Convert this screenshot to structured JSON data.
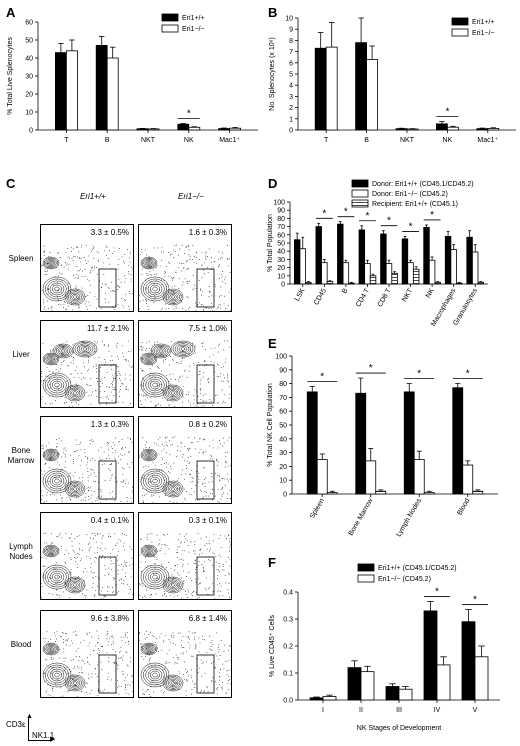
{
  "panels": {
    "A": {
      "letter": "A",
      "legend": [
        "Eri1+/+",
        "Eri1−/−"
      ],
      "chart_data": {
        "type": "bar",
        "ylabel": "% Total Live Splenocytes",
        "ylim": [
          0,
          60
        ],
        "yticks": [
          "0",
          "10",
          "20",
          "30",
          "40",
          "50",
          "60"
        ],
        "categories": [
          "T",
          "B",
          "NKT",
          "NK",
          "Mac1⁺"
        ],
        "series": [
          {
            "name": "Eri1+/+",
            "values": [
              43,
              47,
              0.7,
              3.2,
              0.8
            ],
            "errors": [
              5,
              5,
              0.2,
              0.4,
              0.3
            ]
          },
          {
            "name": "Eri1−/−",
            "values": [
              44,
              40,
              0.6,
              1.5,
              1.0
            ],
            "errors": [
              6,
              6,
              0.2,
              0.3,
              0.4
            ]
          }
        ],
        "significance": [
          {
            "category": "NK",
            "label": "*"
          }
        ]
      }
    },
    "B": {
      "letter": "B",
      "legend": [
        "Eri1+/+",
        "Eri1−/−"
      ],
      "chart_data": {
        "type": "bar",
        "ylabel": "No. Splenocytes (x 10⁶)",
        "ylim": [
          0,
          10
        ],
        "yticks": [
          "0",
          "1",
          "2",
          "3",
          "4",
          "5",
          "6",
          "7",
          "8",
          "9",
          "10"
        ],
        "categories": [
          "T",
          "B",
          "NKT",
          "NK",
          "Mac1⁺"
        ],
        "series": [
          {
            "name": "Eri1+/+",
            "values": [
              7.3,
              7.8,
              0.12,
              0.55,
              0.12
            ],
            "errors": [
              1.4,
              2.2,
              0.04,
              0.2,
              0.05
            ]
          },
          {
            "name": "Eri1−/−",
            "values": [
              7.4,
              6.3,
              0.09,
              0.25,
              0.14
            ],
            "errors": [
              2.2,
              1.2,
              0.03,
              0.08,
              0.06
            ]
          }
        ],
        "significance": [
          {
            "category": "NK",
            "label": "*"
          }
        ]
      }
    },
    "C": {
      "letter": "C",
      "col_headers": [
        "Eri1+/+",
        "Eri1−/−"
      ],
      "rows": [
        {
          "label": "Spleen",
          "wt": "3.3 ± 0.5%",
          "ko": "1.6 ± 0.3%"
        },
        {
          "label": "Liver",
          "wt": "11.7 ± 2.1%",
          "ko": "7.5 ± 1.0%"
        },
        {
          "label": "Bone Marrow",
          "wt": "1.3 ± 0.3%",
          "ko": "0.8 ± 0.2%"
        },
        {
          "label": "Lymph Nodes",
          "wt": "0.4 ± 0.1%",
          "ko": "0.3 ± 0.1%"
        },
        {
          "label": "Blood",
          "wt": "9.6 ± 3.8%",
          "ko": "6.8 ± 1.4%"
        }
      ],
      "y_axis": "CD3ε",
      "x_axis": "NK1.1"
    },
    "D": {
      "letter": "D",
      "legend": [
        "Donor: Eri1+/+ (CD45.1/CD45.2)",
        "Donor: Eri1−/− (CD45.2)",
        "Recipient: Eri1+/+ (CD45.1)"
      ],
      "chart_data": {
        "type": "bar",
        "ylabel": "% Total Population",
        "ylim": [
          0,
          100
        ],
        "yticks": [
          "0",
          "10",
          "20",
          "30",
          "40",
          "50",
          "60",
          "70",
          "80",
          "90",
          "100"
        ],
        "categories": [
          "LSK",
          "CD45",
          "B",
          "CD4 T",
          "CD8 T",
          "NKT",
          "NK",
          "Macrophages",
          "Granulocytes"
        ],
        "series": [
          {
            "name": "Donor: Eri1+/+ (CD45.1/CD45.2)",
            "values": [
              54,
              70,
              73,
              66,
              61,
              55,
              69,
              58,
              57
            ],
            "errors": [
              8,
              4,
              3,
              5,
              4,
              3,
              3,
              6,
              8
            ]
          },
          {
            "name": "Donor: Eri1−/− (CD45.2)",
            "values": [
              43,
              26,
              26,
              25,
              25,
              26,
              29,
              42,
              39
            ],
            "errors": [
              14,
              4,
              3,
              4,
              4,
              3,
              4,
              6,
              9
            ]
          },
          {
            "name": "Recipient: Eri1+/+ (CD45.1)",
            "values": [
              2,
              3,
              1,
              10,
              13,
              18,
              2,
              1,
              2
            ],
            "errors": [
              1,
              1,
              1,
              2,
              2,
              3,
              1,
              1,
              1
            ]
          }
        ],
        "significance": [
          "CD45",
          "B",
          "CD4 T",
          "CD8 T",
          "NKT",
          "NK"
        ]
      }
    },
    "E": {
      "letter": "E",
      "chart_data": {
        "type": "bar",
        "ylabel": "% Total NK Cell Population",
        "ylim": [
          0,
          100
        ],
        "yticks": [
          "0",
          "10",
          "20",
          "30",
          "40",
          "50",
          "60",
          "70",
          "80",
          "90",
          "100"
        ],
        "categories": [
          "Spleen",
          "Bone Marrow",
          "Lymph Nodes",
          "Blood"
        ],
        "series": [
          {
            "name": "Donor: Eri1+/+ (CD45.1/CD45.2)",
            "values": [
              74,
              73,
              74,
              77
            ],
            "errors": [
              4,
              11,
              6,
              3
            ]
          },
          {
            "name": "Donor: Eri1−/− (CD45.2)",
            "values": [
              25,
              24,
              25,
              21
            ],
            "errors": [
              4,
              9,
              6,
              3
            ]
          },
          {
            "name": "Recipient: Eri1+/+ (CD45.1)",
            "values": [
              1,
              2,
              1,
              2
            ],
            "errors": [
              1,
              1,
              1,
              1
            ]
          }
        ],
        "significance": [
          "Spleen",
          "Bone Marrow",
          "Lymph Nodes",
          "Blood"
        ]
      }
    },
    "F": {
      "letter": "F",
      "legend": [
        "Eri1+/+ (CD45.1/CD45.2)",
        "Eri1−/− (CD45.2)"
      ],
      "chart_data": {
        "type": "bar",
        "ylabel": "% Live CD45⁺ Cells",
        "xlabel": "NK Stages of Development",
        "ylim": [
          0,
          0.4
        ],
        "yticks": [
          "0.0",
          "0.1",
          "0.2",
          "0.3",
          "0.4"
        ],
        "categories": [
          "I",
          "II",
          "III",
          "IV",
          "V"
        ],
        "series": [
          {
            "name": "Eri1+/+ (CD45.1/CD45.2)",
            "values": [
              0.008,
              0.12,
              0.05,
              0.33,
              0.29
            ],
            "errors": [
              0.003,
              0.025,
              0.01,
              0.035,
              0.045
            ]
          },
          {
            "name": "Eri1−/− (CD45.2)",
            "values": [
              0.013,
              0.105,
              0.04,
              0.13,
              0.16
            ],
            "errors": [
              0.005,
              0.02,
              0.01,
              0.03,
              0.04
            ]
          }
        ],
        "significance": [
          {
            "category": "IV",
            "label": "*"
          },
          {
            "category": "V",
            "label": "*"
          }
        ]
      }
    }
  }
}
